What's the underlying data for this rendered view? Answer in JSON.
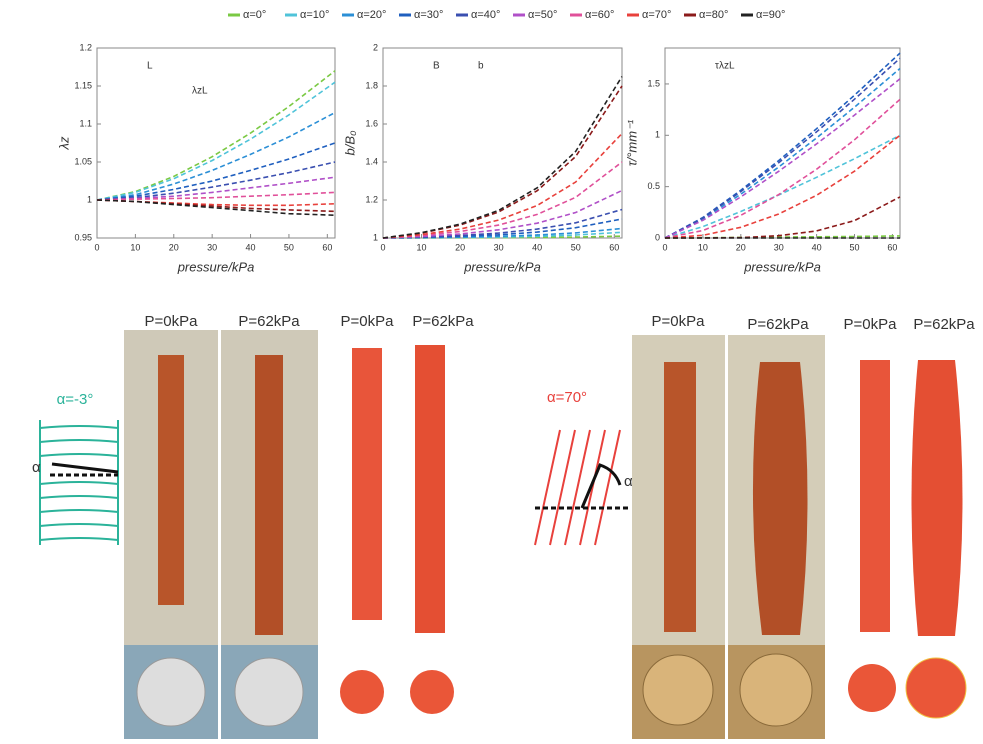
{
  "chart_data": [
    {
      "type": "line",
      "ylabel": "λz",
      "xlabel": "pressure/kPa",
      "annotations": [
        "L",
        "λzL"
      ],
      "x": [
        0,
        10,
        20,
        30,
        40,
        50,
        62
      ],
      "xlim": [
        0,
        62
      ],
      "xticks": [
        0,
        10,
        20,
        30,
        40,
        50,
        60
      ],
      "ylim": [
        0.95,
        1.2
      ],
      "yticks": [
        0.95,
        1,
        1.05,
        1.1,
        1.15,
        1.2
      ],
      "series": [
        {
          "name": "α=0°",
          "color": "#7ac943",
          "values": [
            1,
            1.011,
            1.031,
            1.057,
            1.088,
            1.123,
            1.17
          ]
        },
        {
          "name": "α=10°",
          "color": "#4fc3d9",
          "values": [
            1,
            1.01,
            1.028,
            1.052,
            1.08,
            1.112,
            1.155
          ]
        },
        {
          "name": "α=20°",
          "color": "#2b8fd6",
          "values": [
            1,
            1.007,
            1.021,
            1.039,
            1.06,
            1.083,
            1.115
          ]
        },
        {
          "name": "α=30°",
          "color": "#1f5fbf",
          "values": [
            1,
            1.005,
            1.014,
            1.025,
            1.039,
            1.054,
            1.075
          ]
        },
        {
          "name": "α=40°",
          "color": "#3a4fb0",
          "values": [
            1,
            1.003,
            1.009,
            1.017,
            1.026,
            1.036,
            1.05
          ]
        },
        {
          "name": "α=50°",
          "color": "#b050c8",
          "values": [
            1,
            1.002,
            1.005,
            1.01,
            1.016,
            1.022,
            1.03
          ]
        },
        {
          "name": "α=60°",
          "color": "#e0509a",
          "values": [
            1,
            1.001,
            1.002,
            1.003,
            1.005,
            1.007,
            1.01
          ]
        },
        {
          "name": "α=70°",
          "color": "#e8413c",
          "values": [
            1,
            0.998,
            0.996,
            0.994,
            0.993,
            0.993,
            0.995
          ]
        },
        {
          "name": "α=80°",
          "color": "#8b1a1a",
          "values": [
            1,
            0.998,
            0.995,
            0.992,
            0.989,
            0.987,
            0.985
          ]
        },
        {
          "name": "α=90°",
          "color": "#222222",
          "values": [
            1,
            0.998,
            0.994,
            0.99,
            0.986,
            0.982,
            0.98
          ]
        }
      ]
    },
    {
      "type": "line",
      "ylabel": "b/B₀",
      "xlabel": "pressure/kPa",
      "annotations": [
        "B",
        "b"
      ],
      "x": [
        0,
        10,
        20,
        30,
        40,
        50,
        62
      ],
      "xlim": [
        0,
        62
      ],
      "xticks": [
        0,
        10,
        20,
        30,
        40,
        50,
        60
      ],
      "ylim": [
        1,
        2
      ],
      "yticks": [
        1,
        1.2,
        1.4,
        1.6,
        1.8,
        2
      ],
      "series": [
        {
          "color": "#7ac943",
          "values": [
            1,
            1,
            1.001,
            1.002,
            1.003,
            1.005,
            1.01
          ]
        },
        {
          "color": "#4fc3d9",
          "values": [
            1,
            1.001,
            1.003,
            1.005,
            1.009,
            1.016,
            1.03
          ]
        },
        {
          "color": "#2b8fd6",
          "values": [
            1,
            1.002,
            1.004,
            1.009,
            1.016,
            1.027,
            1.05
          ]
        },
        {
          "color": "#1f5fbf",
          "values": [
            1,
            1.003,
            1.009,
            1.017,
            1.031,
            1.054,
            1.1
          ]
        },
        {
          "color": "#3a4fb0",
          "values": [
            1,
            1.005,
            1.013,
            1.026,
            1.047,
            1.08,
            1.15
          ]
        },
        {
          "color": "#b050c8",
          "values": [
            1,
            1.008,
            1.021,
            1.043,
            1.078,
            1.134,
            1.25
          ]
        },
        {
          "color": "#e0509a",
          "values": [
            1,
            1.013,
            1.034,
            1.068,
            1.124,
            1.214,
            1.4
          ]
        },
        {
          "color": "#e8413c",
          "values": [
            1,
            1.018,
            1.047,
            1.094,
            1.171,
            1.295,
            1.55
          ]
        },
        {
          "color": "#8b1a1a",
          "values": [
            1,
            1.026,
            1.068,
            1.137,
            1.249,
            1.429,
            1.8
          ]
        },
        {
          "color": "#222222",
          "values": [
            1,
            1.028,
            1.073,
            1.145,
            1.264,
            1.456,
            1.85
          ]
        }
      ]
    },
    {
      "type": "line",
      "ylabel": "τ/°mm⁻¹",
      "xlabel": "pressure/kPa",
      "annotations": [
        "τλzL"
      ],
      "x": [
        0,
        10,
        20,
        30,
        40,
        50,
        62
      ],
      "xlim": [
        0,
        62
      ],
      "xticks": [
        0,
        10,
        20,
        30,
        40,
        50,
        60
      ],
      "ylim": [
        0,
        1.85
      ],
      "yticks": [
        0,
        0.5,
        1,
        1.5
      ],
      "series": [
        {
          "color": "#7ac943",
          "values": [
            0,
            0.003,
            0.006,
            0.009,
            0.012,
            0.015,
            0.02
          ]
        },
        {
          "color": "#4fc3d9",
          "values": [
            0,
            0.111,
            0.258,
            0.419,
            0.591,
            0.772,
            1.0
          ]
        },
        {
          "color": "#2b8fd6",
          "values": [
            0,
            0.183,
            0.426,
            0.691,
            0.975,
            1.274,
            1.65
          ]
        },
        {
          "color": "#1f5fbf",
          "values": [
            0,
            0.2,
            0.464,
            0.754,
            1.064,
            1.39,
            1.8
          ]
        },
        {
          "color": "#3a4fb0",
          "values": [
            0,
            0.194,
            0.452,
            0.733,
            1.034,
            1.351,
            1.75
          ]
        },
        {
          "color": "#b050c8",
          "values": [
            0,
            0.172,
            0.4,
            0.649,
            0.916,
            1.197,
            1.55
          ]
        },
        {
          "color": "#e0509a",
          "values": [
            0,
            0.073,
            0.221,
            0.423,
            0.67,
            0.956,
            1.35
          ]
        },
        {
          "color": "#e8413c",
          "values": [
            0,
            0.026,
            0.104,
            0.234,
            0.416,
            0.65,
            1.0
          ]
        },
        {
          "color": "#8b1a1a",
          "values": [
            0,
            0,
            0.004,
            0.022,
            0.069,
            0.169,
            0.4
          ]
        },
        {
          "color": "#222222",
          "values": [
            0,
            0,
            0,
            0,
            0,
            0,
            0
          ]
        }
      ]
    }
  ],
  "figure": {
    "left": {
      "angle_label": "α=-3°",
      "angle_symbol": "α",
      "photo_labels": [
        "P=0kPa",
        "P=62kPa",
        "P=0kPa",
        "P=62kPa"
      ]
    },
    "right": {
      "angle_label": "α=70°",
      "angle_symbol": "α",
      "photo_labels": [
        "P=0kPa",
        "P=62kPa",
        "P=0kPa",
        "P=62kPa"
      ]
    }
  }
}
